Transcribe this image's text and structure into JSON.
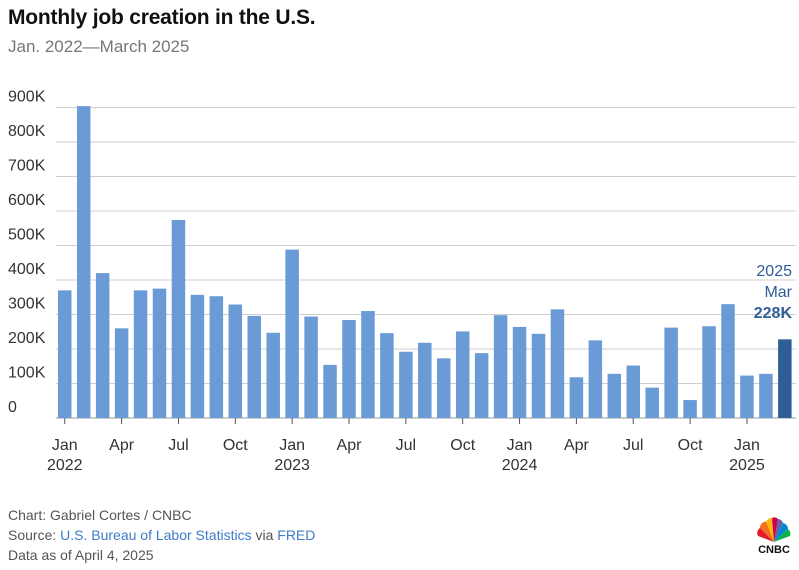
{
  "header": {
    "title": "Monthly job creation in the U.S.",
    "subtitle": "Jan. 2022—March 2025"
  },
  "footer": {
    "credit": "Chart: Gabriel Cortes / CNBC",
    "source_prefix": "Source: ",
    "source_link1": "U.S. Bureau of Labor Statistics",
    "source_via": " via ",
    "source_link2": "FRED",
    "data_date": "Data as of April 4, 2025"
  },
  "logo": {
    "text": "CNBC",
    "icon": "peacock-logo"
  },
  "colors": {
    "bar": "#6a9bd6",
    "highlight": "#2f5d96",
    "grid": "#cfcfcf",
    "link": "#3d7cc9"
  },
  "chart_data": {
    "type": "bar",
    "y_ticks": [
      "0",
      "100K",
      "200K",
      "300K",
      "400K",
      "500K",
      "600K",
      "700K",
      "800K",
      "900K"
    ],
    "ylim": [
      0,
      900000
    ],
    "grid": true,
    "x_tick_labels": [
      {
        "index": 0,
        "month": "Jan",
        "year": "2022"
      },
      {
        "index": 3,
        "month": "Apr",
        "year": ""
      },
      {
        "index": 6,
        "month": "Jul",
        "year": ""
      },
      {
        "index": 9,
        "month": "Oct",
        "year": ""
      },
      {
        "index": 12,
        "month": "Jan",
        "year": "2023"
      },
      {
        "index": 15,
        "month": "Apr",
        "year": ""
      },
      {
        "index": 18,
        "month": "Jul",
        "year": ""
      },
      {
        "index": 21,
        "month": "Oct",
        "year": ""
      },
      {
        "index": 24,
        "month": "Jan",
        "year": "2024"
      },
      {
        "index": 27,
        "month": "Apr",
        "year": ""
      },
      {
        "index": 30,
        "month": "Jul",
        "year": ""
      },
      {
        "index": 33,
        "month": "Oct",
        "year": ""
      },
      {
        "index": 36,
        "month": "Jan",
        "year": "2025"
      }
    ],
    "values": [
      370000,
      904000,
      420000,
      260000,
      370000,
      375000,
      574000,
      357000,
      353000,
      329000,
      296000,
      247000,
      488000,
      294000,
      154000,
      284000,
      310000,
      246000,
      192000,
      218000,
      173000,
      251000,
      188000,
      298000,
      264000,
      244000,
      315000,
      118000,
      225000,
      128000,
      152000,
      88000,
      262000,
      52000,
      266000,
      330000,
      123000,
      128000,
      228000
    ],
    "highlight_index": 38,
    "annotation": {
      "year": "2025",
      "month": "Mar",
      "value": "228K"
    }
  }
}
